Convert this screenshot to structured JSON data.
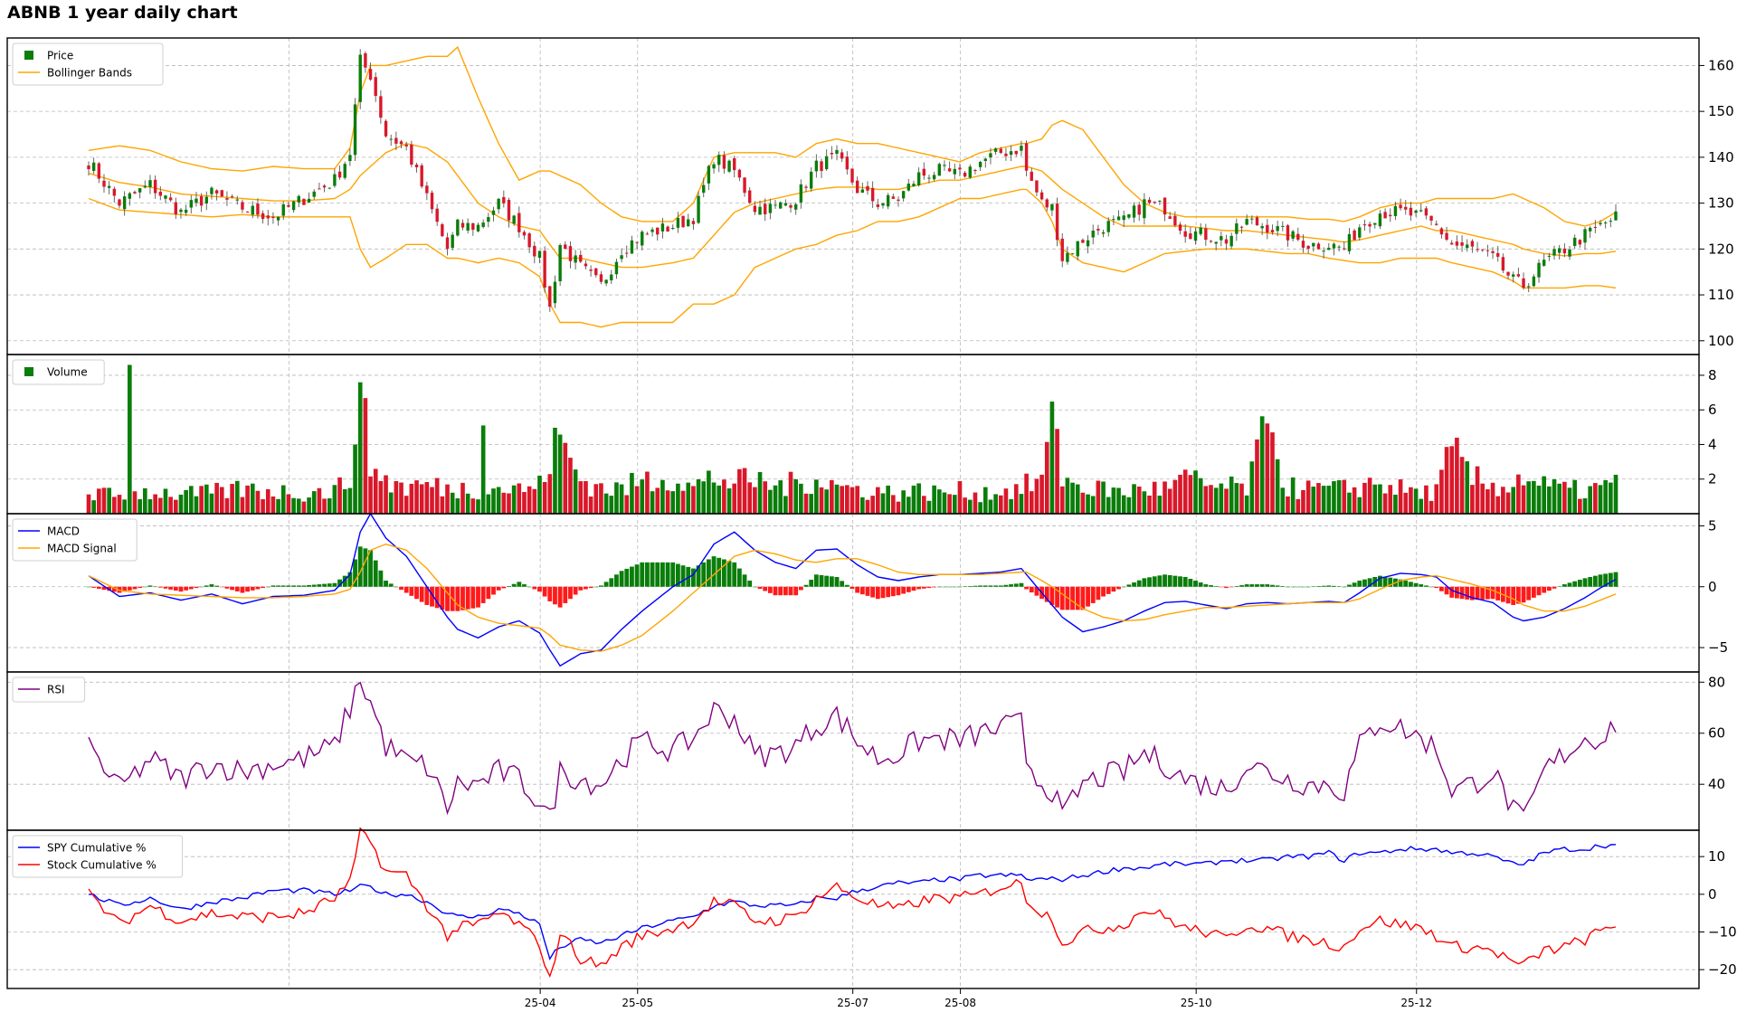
{
  "chart_data": {
    "type": "stock-dashboard",
    "title": "ABNB 1 year daily chart",
    "x_tick_labels": [
      "25-04",
      "25-05",
      "25-07",
      "25-08",
      "25-10",
      "25-12"
    ],
    "colors": {
      "up": "#0a7d0a",
      "down": "#d9182a",
      "bollinger": "#ffa500",
      "macd": "#0000ff",
      "macd_signal": "#ffa500",
      "rsi": "#800080",
      "spy": "#0000ff",
      "stock": "#ff0000"
    },
    "anchors": [
      {
        "i": 0,
        "p": 139,
        "bu": 141.5,
        "bm": 136.5,
        "bl": 131,
        "v": 1.2,
        "m": 0.9,
        "s": 0.9,
        "r": 55,
        "spy": 0,
        "st": 0
      },
      {
        "i": 6,
        "p": 130,
        "bu": 142.5,
        "bm": 134.5,
        "bl": 128.5,
        "v": 1.0,
        "m": -0.8,
        "s": -0.3,
        "r": 38,
        "spy": -3,
        "st": -8
      },
      {
        "i": 12,
        "p": 134,
        "bu": 141.5,
        "bm": 133.5,
        "bl": 128,
        "v": 1.3,
        "m": -0.5,
        "s": -0.6,
        "r": 50,
        "spy": -1,
        "st": -3
      },
      {
        "i": 18,
        "p": 128,
        "bu": 139,
        "bm": 132,
        "bl": 127.5,
        "v": 1.1,
        "m": -1.1,
        "s": -0.7,
        "r": 42,
        "spy": -4,
        "st": -7
      },
      {
        "i": 24,
        "p": 132,
        "bu": 137.5,
        "bm": 131.5,
        "bl": 127,
        "v": 1.2,
        "m": -0.6,
        "s": -0.8,
        "r": 48,
        "spy": -2,
        "st": -5
      },
      {
        "i": 30,
        "p": 129,
        "bu": 137,
        "bm": 131,
        "bl": 127.5,
        "v": 1.4,
        "m": -1.4,
        "s": -0.9,
        "r": 45,
        "spy": -1,
        "st": -6
      },
      {
        "i": 36,
        "p": 127,
        "bu": 138,
        "bm": 130.5,
        "bl": 127,
        "v": 1.3,
        "m": -0.8,
        "s": -0.9,
        "r": 48,
        "spy": 1,
        "st": -6
      },
      {
        "i": 42,
        "p": 131,
        "bu": 137.5,
        "bm": 130.5,
        "bl": 127,
        "v": 1.2,
        "m": -0.7,
        "s": -0.8,
        "r": 50,
        "spy": 1,
        "st": -5
      },
      {
        "i": 48,
        "p": 135,
        "bu": 137.5,
        "bm": 131,
        "bl": 127,
        "v": 1.3,
        "m": -0.3,
        "s": -0.6,
        "r": 55,
        "spy": 0,
        "st": -1
      },
      {
        "i": 51,
        "p": 141,
        "bu": 142,
        "bm": 133,
        "bl": 127,
        "v": 2.0,
        "m": 1.0,
        "s": -0.2,
        "r": 70,
        "spy": 1,
        "st": 3
      },
      {
        "i": 53,
        "p": 161,
        "bu": 154,
        "bm": 136,
        "bl": 120,
        "v": 6.3,
        "m": 4.5,
        "s": 1.2,
        "r": 81,
        "spy": 2,
        "st": 16
      },
      {
        "i": 55,
        "p": 158,
        "bu": 160,
        "bm": 138,
        "bl": 116,
        "v": 3.0,
        "m": 6.0,
        "s": 3.0,
        "r": 72,
        "spy": 2,
        "st": 14
      },
      {
        "i": 58,
        "p": 145,
        "bu": 160,
        "bm": 141,
        "bl": 118,
        "v": 1.9,
        "m": 4.0,
        "s": 3.5,
        "r": 55,
        "spy": 0,
        "st": 6
      },
      {
        "i": 62,
        "p": 142,
        "bu": 161,
        "bm": 143,
        "bl": 121,
        "v": 1.5,
        "m": 2.5,
        "s": 3.0,
        "r": 49,
        "spy": 0,
        "st": 5
      },
      {
        "i": 66,
        "p": 131,
        "bu": 162,
        "bm": 142,
        "bl": 121,
        "v": 1.7,
        "m": 0.0,
        "s": 1.5,
        "r": 47,
        "spy": -2,
        "st": -3
      },
      {
        "i": 70,
        "p": 120,
        "bu": 162,
        "bm": 139,
        "bl": 118,
        "v": 1.4,
        "m": -2.5,
        "s": -0.5,
        "r": 31,
        "spy": -5,
        "st": -11
      },
      {
        "i": 72,
        "p": 125,
        "bu": 164,
        "bm": 136,
        "bl": 118,
        "v": 1.5,
        "m": -3.5,
        "s": -1.5,
        "r": 40,
        "spy": -6,
        "st": -9
      },
      {
        "i": 76,
        "p": 125,
        "bu": 153,
        "bm": 130,
        "bl": 117,
        "v": 1.3,
        "m": -4.2,
        "s": -2.5,
        "r": 40,
        "spy": -6,
        "st": -8
      },
      {
        "i": 80,
        "p": 130,
        "bu": 143,
        "bm": 127,
        "bl": 118,
        "v": 1.5,
        "m": -3.3,
        "s": -3.0,
        "r": 45,
        "spy": -4,
        "st": -5
      },
      {
        "i": 84,
        "p": 125,
        "bu": 135,
        "bm": 125,
        "bl": 117,
        "v": 1.4,
        "m": -2.8,
        "s": -3.2,
        "r": 42,
        "spy": -5,
        "st": -8
      },
      {
        "i": 88,
        "p": 118,
        "bu": 137,
        "bm": 124,
        "bl": 114,
        "v": 1.6,
        "m": -3.8,
        "s": -3.4,
        "r": 33,
        "spy": -8,
        "st": -13
      },
      {
        "i": 90,
        "p": 107,
        "bu": 137,
        "bm": 121,
        "bl": 108,
        "v": 3.3,
        "m": -5.2,
        "s": -4.0,
        "r": 26,
        "spy": -17,
        "st": -23
      },
      {
        "i": 92,
        "p": 121,
        "bu": 136,
        "bm": 118,
        "bl": 104,
        "v": 4.2,
        "m": -6.5,
        "s": -4.8,
        "r": 45,
        "spy": -14,
        "st": -10
      },
      {
        "i": 96,
        "p": 116,
        "bu": 134,
        "bm": 118,
        "bl": 104,
        "v": 2.0,
        "m": -5.5,
        "s": -5.2,
        "r": 42,
        "spy": -12,
        "st": -17
      },
      {
        "i": 100,
        "p": 112,
        "bu": 130,
        "bm": 117,
        "bl": 103,
        "v": 1.5,
        "m": -5.2,
        "s": -5.3,
        "r": 40,
        "spy": -13,
        "st": -19
      },
      {
        "i": 104,
        "p": 120,
        "bu": 127,
        "bm": 116,
        "bl": 104,
        "v": 1.4,
        "m": -3.5,
        "s": -4.8,
        "r": 50,
        "spy": -11,
        "st": -14
      },
      {
        "i": 108,
        "p": 123,
        "bu": 126,
        "bm": 116,
        "bl": 104,
        "v": 1.9,
        "m": -2.0,
        "s": -4.0,
        "r": 57,
        "spy": -9,
        "st": -11
      },
      {
        "i": 114,
        "p": 125,
        "bu": 126,
        "bm": 117,
        "bl": 104,
        "v": 2.2,
        "m": 0.0,
        "s": -2.0,
        "r": 53,
        "spy": -7,
        "st": -9
      },
      {
        "i": 118,
        "p": 127,
        "bu": 130,
        "bm": 118,
        "bl": 108,
        "v": 1.5,
        "m": 1.0,
        "s": -0.5,
        "r": 58,
        "spy": -6,
        "st": -7
      },
      {
        "i": 122,
        "p": 140,
        "bu": 140,
        "bm": 123,
        "bl": 108,
        "v": 2.1,
        "m": 3.5,
        "s": 1.0,
        "r": 69,
        "spy": -3,
        "st": -2
      },
      {
        "i": 126,
        "p": 137,
        "bu": 141,
        "bm": 128,
        "bl": 110,
        "v": 1.8,
        "m": 4.5,
        "s": 2.5,
        "r": 66,
        "spy": -2,
        "st": -3
      },
      {
        "i": 130,
        "p": 129,
        "bu": 141,
        "bm": 130,
        "bl": 116,
        "v": 1.9,
        "m": 3.0,
        "s": 3.0,
        "r": 51,
        "spy": -3,
        "st": -7
      },
      {
        "i": 134,
        "p": 129,
        "bu": 141,
        "bm": 131,
        "bl": 118,
        "v": 1.6,
        "m": 2.0,
        "s": 2.7,
        "r": 52,
        "spy": -3,
        "st": -7
      },
      {
        "i": 138,
        "p": 131,
        "bu": 140,
        "bm": 132,
        "bl": 120,
        "v": 1.7,
        "m": 1.5,
        "s": 2.2,
        "r": 55,
        "spy": -3,
        "st": -6
      },
      {
        "i": 142,
        "p": 138,
        "bu": 143,
        "bm": 133,
        "bl": 121,
        "v": 2.1,
        "m": 3.0,
        "s": 2.0,
        "r": 63,
        "spy": -1,
        "st": -1
      },
      {
        "i": 146,
        "p": 140,
        "bu": 144,
        "bm": 133.5,
        "bl": 123,
        "v": 1.6,
        "m": 3.1,
        "s": 2.3,
        "r": 67,
        "spy": -1,
        "st": 2
      },
      {
        "i": 150,
        "p": 133,
        "bu": 143,
        "bm": 133.5,
        "bl": 124,
        "v": 1.4,
        "m": 1.8,
        "s": 2.3,
        "r": 57,
        "spy": 1,
        "st": -1
      },
      {
        "i": 154,
        "p": 130,
        "bu": 143,
        "bm": 133,
        "bl": 126,
        "v": 1.3,
        "m": 0.8,
        "s": 1.8,
        "r": 50,
        "spy": 2,
        "st": -3
      },
      {
        "i": 158,
        "p": 131,
        "bu": 142,
        "bm": 133,
        "bl": 126,
        "v": 1.2,
        "m": 0.5,
        "s": 1.2,
        "r": 52,
        "spy": 3,
        "st": -4
      },
      {
        "i": 162,
        "p": 136,
        "bu": 141,
        "bm": 134,
        "bl": 127,
        "v": 1.3,
        "m": 0.8,
        "s": 1.0,
        "r": 57,
        "spy": 3,
        "st": -2
      },
      {
        "i": 166,
        "p": 137,
        "bu": 140,
        "bm": 135,
        "bl": 129,
        "v": 1.2,
        "m": 1.0,
        "s": 1.0,
        "r": 58,
        "spy": 4,
        "st": -1
      },
      {
        "i": 170,
        "p": 136,
        "bu": 139,
        "bm": 135,
        "bl": 131,
        "v": 1.3,
        "m": 1.0,
        "s": 1.0,
        "r": 57,
        "spy": 4,
        "st": -1
      },
      {
        "i": 174,
        "p": 139,
        "bu": 141,
        "bm": 136,
        "bl": 131,
        "v": 1.2,
        "m": 1.1,
        "s": 1.0,
        "r": 60,
        "spy": 5,
        "st": 0
      },
      {
        "i": 178,
        "p": 141,
        "bu": 142,
        "bm": 137,
        "bl": 132,
        "v": 1.3,
        "m": 1.2,
        "s": 1.1,
        "r": 62,
        "spy": 5,
        "st": 2
      },
      {
        "i": 182,
        "p": 142,
        "bu": 143,
        "bm": 138,
        "bl": 133,
        "v": 1.4,
        "m": 1.5,
        "s": 1.2,
        "r": 64,
        "spy": 5,
        "st": 3
      },
      {
        "i": 183,
        "p": 137,
        "bu": 143,
        "bm": 138,
        "bl": 133,
        "v": 1.6,
        "m": 1.0,
        "s": 1.2,
        "r": 50,
        "spy": 4,
        "st": -1
      },
      {
        "i": 186,
        "p": 130,
        "bu": 144,
        "bm": 137,
        "bl": 130,
        "v": 2.0,
        "m": -0.5,
        "s": 0.5,
        "r": 40,
        "spy": 4,
        "st": -5
      },
      {
        "i": 188,
        "p": 129,
        "bu": 147,
        "bm": 135,
        "bl": 126,
        "v": 4.7,
        "m": -1.5,
        "s": 0.0,
        "r": 38,
        "spy": 4,
        "st": -6
      },
      {
        "i": 190,
        "p": 118,
        "bu": 148,
        "bm": 133,
        "bl": 120,
        "v": 2.0,
        "m": -2.5,
        "s": -0.6,
        "r": 27,
        "spy": 4,
        "st": -13
      },
      {
        "i": 194,
        "p": 122,
        "bu": 146,
        "bm": 130,
        "bl": 117,
        "v": 1.5,
        "m": -3.7,
        "s": -1.8,
        "r": 40,
        "spy": 5,
        "st": -10
      },
      {
        "i": 198,
        "p": 125,
        "bu": 140,
        "bm": 127,
        "bl": 116,
        "v": 1.4,
        "m": -3.3,
        "s": -2.5,
        "r": 43,
        "spy": 6,
        "st": -9
      },
      {
        "i": 202,
        "p": 126,
        "bu": 134,
        "bm": 125,
        "bl": 115,
        "v": 1.2,
        "m": -2.8,
        "s": -2.8,
        "r": 45,
        "spy": 7,
        "st": -8
      },
      {
        "i": 206,
        "p": 130,
        "bu": 130,
        "bm": 125,
        "bl": 117,
        "v": 1.5,
        "m": -2.0,
        "s": -2.7,
        "r": 52,
        "spy": 7,
        "st": -4
      },
      {
        "i": 210,
        "p": 129,
        "bu": 128,
        "bm": 125,
        "bl": 119,
        "v": 1.4,
        "m": -1.3,
        "s": -2.3,
        "r": 48,
        "spy": 8,
        "st": -6
      },
      {
        "i": 214,
        "p": 124,
        "bu": 127,
        "bm": 125,
        "bl": 119.5,
        "v": 2.0,
        "m": -1.2,
        "s": -2.0,
        "r": 42,
        "spy": 8,
        "st": -9
      },
      {
        "i": 218,
        "p": 123,
        "bu": 127,
        "bm": 124.5,
        "bl": 120,
        "v": 1.6,
        "m": -1.5,
        "s": -1.7,
        "r": 40,
        "spy": 8,
        "st": -10
      },
      {
        "i": 222,
        "p": 122,
        "bu": 127,
        "bm": 124,
        "bl": 120,
        "v": 1.5,
        "m": -1.8,
        "s": -1.7,
        "r": 38,
        "spy": 9,
        "st": -12
      },
      {
        "i": 226,
        "p": 126,
        "bu": 127,
        "bm": 124,
        "bl": 120,
        "v": 1.5,
        "m": -1.4,
        "s": -1.6,
        "r": 48,
        "spy": 9,
        "st": -8
      },
      {
        "i": 230,
        "p": 125,
        "bu": 127,
        "bm": 123.5,
        "bl": 119.5,
        "v": 4.7,
        "m": -1.3,
        "s": -1.5,
        "r": 45,
        "spy": 9,
        "st": -9
      },
      {
        "i": 234,
        "p": 123,
        "bu": 127,
        "bm": 123,
        "bl": 119,
        "v": 1.5,
        "m": -1.4,
        "s": -1.4,
        "r": 42,
        "spy": 10,
        "st": -11
      },
      {
        "i": 238,
        "p": 121,
        "bu": 126.5,
        "bm": 122.5,
        "bl": 119,
        "v": 1.4,
        "m": -1.3,
        "s": -1.3,
        "r": 40,
        "spy": 10,
        "st": -12
      },
      {
        "i": 242,
        "p": 121,
        "bu": 126.5,
        "bm": 122,
        "bl": 118,
        "v": 1.4,
        "m": -1.2,
        "s": -1.3,
        "r": 40,
        "spy": 11,
        "st": -13
      },
      {
        "i": 245,
        "p": 120,
        "bu": 126,
        "bm": 121.5,
        "bl": 117.5,
        "v": 1.4,
        "m": -1.3,
        "s": -1.3,
        "r": 37,
        "spy": 9,
        "st": -14
      },
      {
        "i": 248,
        "p": 125,
        "bu": 127,
        "bm": 122,
        "bl": 117,
        "v": 1.6,
        "m": -0.5,
        "s": -1.0,
        "r": 55,
        "spy": 11,
        "st": -9
      },
      {
        "i": 252,
        "p": 128,
        "bu": 129,
        "bm": 123,
        "bl": 117,
        "v": 1.8,
        "m": 0.7,
        "s": -0.2,
        "r": 65,
        "spy": 11,
        "st": -7
      },
      {
        "i": 256,
        "p": 128,
        "bu": 130,
        "bm": 124,
        "bl": 118,
        "v": 1.4,
        "m": 1.1,
        "s": 0.5,
        "r": 62,
        "spy": 12,
        "st": -8
      },
      {
        "i": 260,
        "p": 127,
        "bu": 130,
        "bm": 125,
        "bl": 118,
        "v": 1.2,
        "m": 1.0,
        "s": 0.8,
        "r": 58,
        "spy": 12,
        "st": -9
      },
      {
        "i": 263,
        "p": 125,
        "bu": 131,
        "bm": 124,
        "bl": 118,
        "v": 1.3,
        "m": 0.8,
        "s": 0.9,
        "r": 54,
        "spy": 12,
        "st": -11
      },
      {
        "i": 266,
        "p": 121,
        "bu": 131,
        "bm": 124,
        "bl": 117,
        "v": 3.5,
        "m": -0.3,
        "s": 0.6,
        "r": 38,
        "spy": 11,
        "st": -14
      },
      {
        "i": 270,
        "p": 120,
        "bu": 131,
        "bm": 123,
        "bl": 116,
        "v": 2.0,
        "m": -0.9,
        "s": 0.2,
        "r": 40,
        "spy": 11,
        "st": -14
      },
      {
        "i": 274,
        "p": 118,
        "bu": 131,
        "bm": 122,
        "bl": 115,
        "v": 1.6,
        "m": -1.3,
        "s": -0.3,
        "r": 45,
        "spy": 10,
        "st": -15
      },
      {
        "i": 278,
        "p": 113,
        "bu": 132,
        "bm": 121,
        "bl": 113,
        "v": 1.7,
        "m": -2.5,
        "s": -1.0,
        "r": 30,
        "spy": 8,
        "st": -18
      },
      {
        "i": 280,
        "p": 112,
        "bu": 131,
        "bm": 120,
        "bl": 111.5,
        "v": 2.2,
        "m": -2.8,
        "s": -1.5,
        "r": 25,
        "spy": 8,
        "st": -19
      },
      {
        "i": 284,
        "p": 117,
        "bu": 129,
        "bm": 119,
        "bl": 111.5,
        "v": 1.6,
        "m": -2.5,
        "s": -2.0,
        "r": 45,
        "spy": 11,
        "st": -15
      },
      {
        "i": 288,
        "p": 120,
        "bu": 126,
        "bm": 118.5,
        "bl": 111.5,
        "v": 1.4,
        "m": -1.8,
        "s": -2.0,
        "r": 52,
        "spy": 12,
        "st": -14
      },
      {
        "i": 292,
        "p": 123,
        "bu": 125,
        "bm": 119,
        "bl": 112,
        "v": 1.3,
        "m": -0.9,
        "s": -1.6,
        "r": 58,
        "spy": 12,
        "st": -12
      },
      {
        "i": 295,
        "p": 125,
        "bu": 126,
        "bm": 119,
        "bl": 112,
        "v": 1.5,
        "m": -0.1,
        "s": -1.1,
        "r": 58,
        "spy": 13,
        "st": -10
      },
      {
        "i": 298,
        "p": 127,
        "bu": 128,
        "bm": 119.5,
        "bl": 111.5,
        "v": 1.7,
        "m": 0.6,
        "s": -0.6,
        "r": 64,
        "spy": 13,
        "st": -8
      }
    ],
    "n_days": 299,
    "panels": [
      {
        "id": "price",
        "legend": [
          "Price",
          "Bollinger Bands"
        ],
        "ylim": [
          97,
          166
        ],
        "yticks": [
          100,
          110,
          120,
          130,
          140,
          150,
          160
        ]
      },
      {
        "id": "volume",
        "legend": [
          "Volume"
        ],
        "ylim": [
          0,
          9.2
        ],
        "yticks": [
          2,
          4,
          6,
          8
        ],
        "spikes": [
          {
            "i": 8,
            "v": 8.6
          },
          {
            "i": 52,
            "v": 4.0
          },
          {
            "i": 77,
            "v": 5.1
          },
          {
            "i": 189,
            "v": 4.9
          },
          {
            "i": 231,
            "v": 4.7
          }
        ]
      },
      {
        "id": "macd",
        "legend": [
          "MACD",
          "MACD Signal"
        ],
        "ylim": [
          -7,
          6
        ],
        "yticks": [
          -5,
          0,
          5
        ]
      },
      {
        "id": "rsi",
        "legend": [
          "RSI"
        ],
        "ylim": [
          22,
          84
        ],
        "yticks": [
          40,
          60,
          80
        ]
      },
      {
        "id": "cumulative",
        "legend": [
          "SPY Cumulative %",
          "Stock Cumulative %"
        ],
        "ylim": [
          -25,
          17
        ],
        "yticks": [
          -20,
          -10,
          0,
          10
        ]
      }
    ]
  }
}
